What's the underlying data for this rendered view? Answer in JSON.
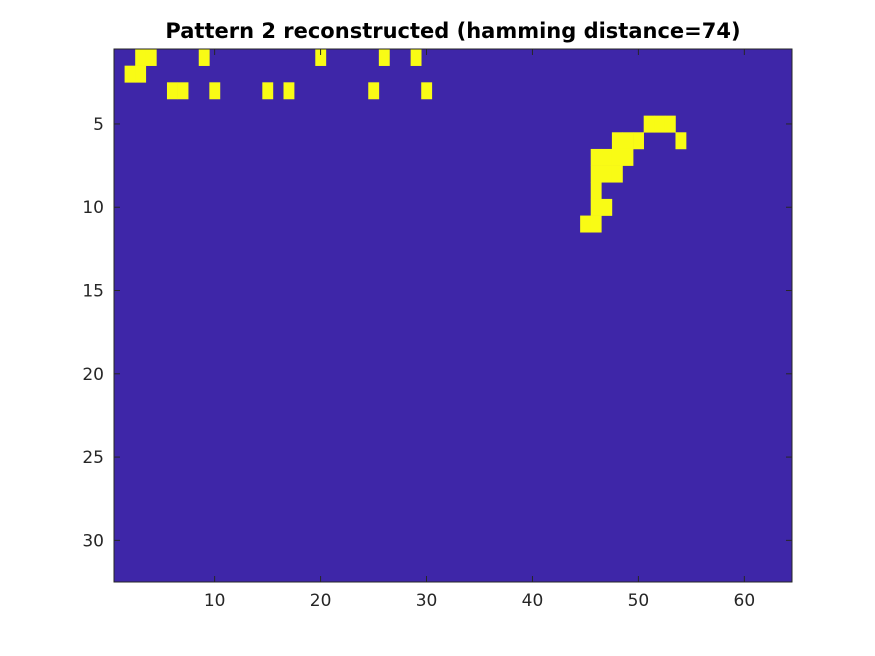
{
  "chart_data": {
    "type": "heatmap",
    "title": "Pattern 2 reconstructed (hamming distance=74)",
    "xlabel": "",
    "ylabel": "",
    "x_range": [
      0.5,
      64.5
    ],
    "y_range": [
      0.5,
      32.5
    ],
    "y_reversed": true,
    "x_ticks": [
      10,
      20,
      30,
      40,
      50,
      60
    ],
    "y_ticks": [
      5,
      10,
      15,
      20,
      25,
      30
    ],
    "grid": false,
    "value_colors": {
      "0": "#3e26a8",
      "1": "#f9fb15"
    },
    "matrix": [
      "0011000010000000000100000100100000000000000000000000000000000000",
      "0110000000000000000000000000000000000000000000000000000000000000",
      "0000011001000010100000001000010000000000000000000000000000000000",
      "0000000000000000000000000000000000000000000000000000000000000000",
      "0000000000000000000000000000000000000000000000000011100000000000",
      "0000000000000000000000000000000000000000000000011100010000000000",
      "0000000000000000000000000000000000000000000001111000000000000000",
      "0000000000000000000000000000000000000000000001110000000000000000",
      "0000000000000000000000000000000000000000000001000000000000000000",
      "0000000000000000000000000000000000000000000001100000000000000000",
      "0000000000000000000000000000000000000000000011000000000000000000",
      "0000000000000000000000000000000000000000000000000000000000000000",
      "0000000000000000000000000000000000000000000000000000000000000000",
      "0000000000000000000000000000000000000000000000000000000000000000",
      "0000000000000000000000000000000000000000000000000000000000000000",
      "0000000000000000000000000000000000000000000000000000000000000000",
      "0000000000000000000000000000000000000000000000000000000000000000",
      "0000000000000000000000000000000000000000000000000000000000000000",
      "0000000000000000000000000000000000000000000000000000000000000000",
      "0000000000000000000000000000000000000000000000000000000000000000",
      "0000000000000000000000000000000000000000000000000000000000000000",
      "0000000000000000000000000000000000000000000000000000000000000000",
      "0000000000000000000000000000000000000000000000000000000000000000",
      "0000000000000000000000000000000000000000000000000000000000000000",
      "0000000000000000000000000000000000000000000000000000000000000000",
      "0000000000000000000000000000000000000000000000000000000000000000",
      "0000000000000000000000000000000000000000000000000000000000000000",
      "0000000000000000000000000000000000000000000000000000000000000000",
      "0000000000000000000000000000000000000000000000000000000000000000",
      "0000000000000000000000000000000000000000000000000000000000000000",
      "0000000000000000000000000000000000000000000000000000000000000000",
      "0000000000000000000000000000000000000000000000000000000000000000"
    ]
  }
}
